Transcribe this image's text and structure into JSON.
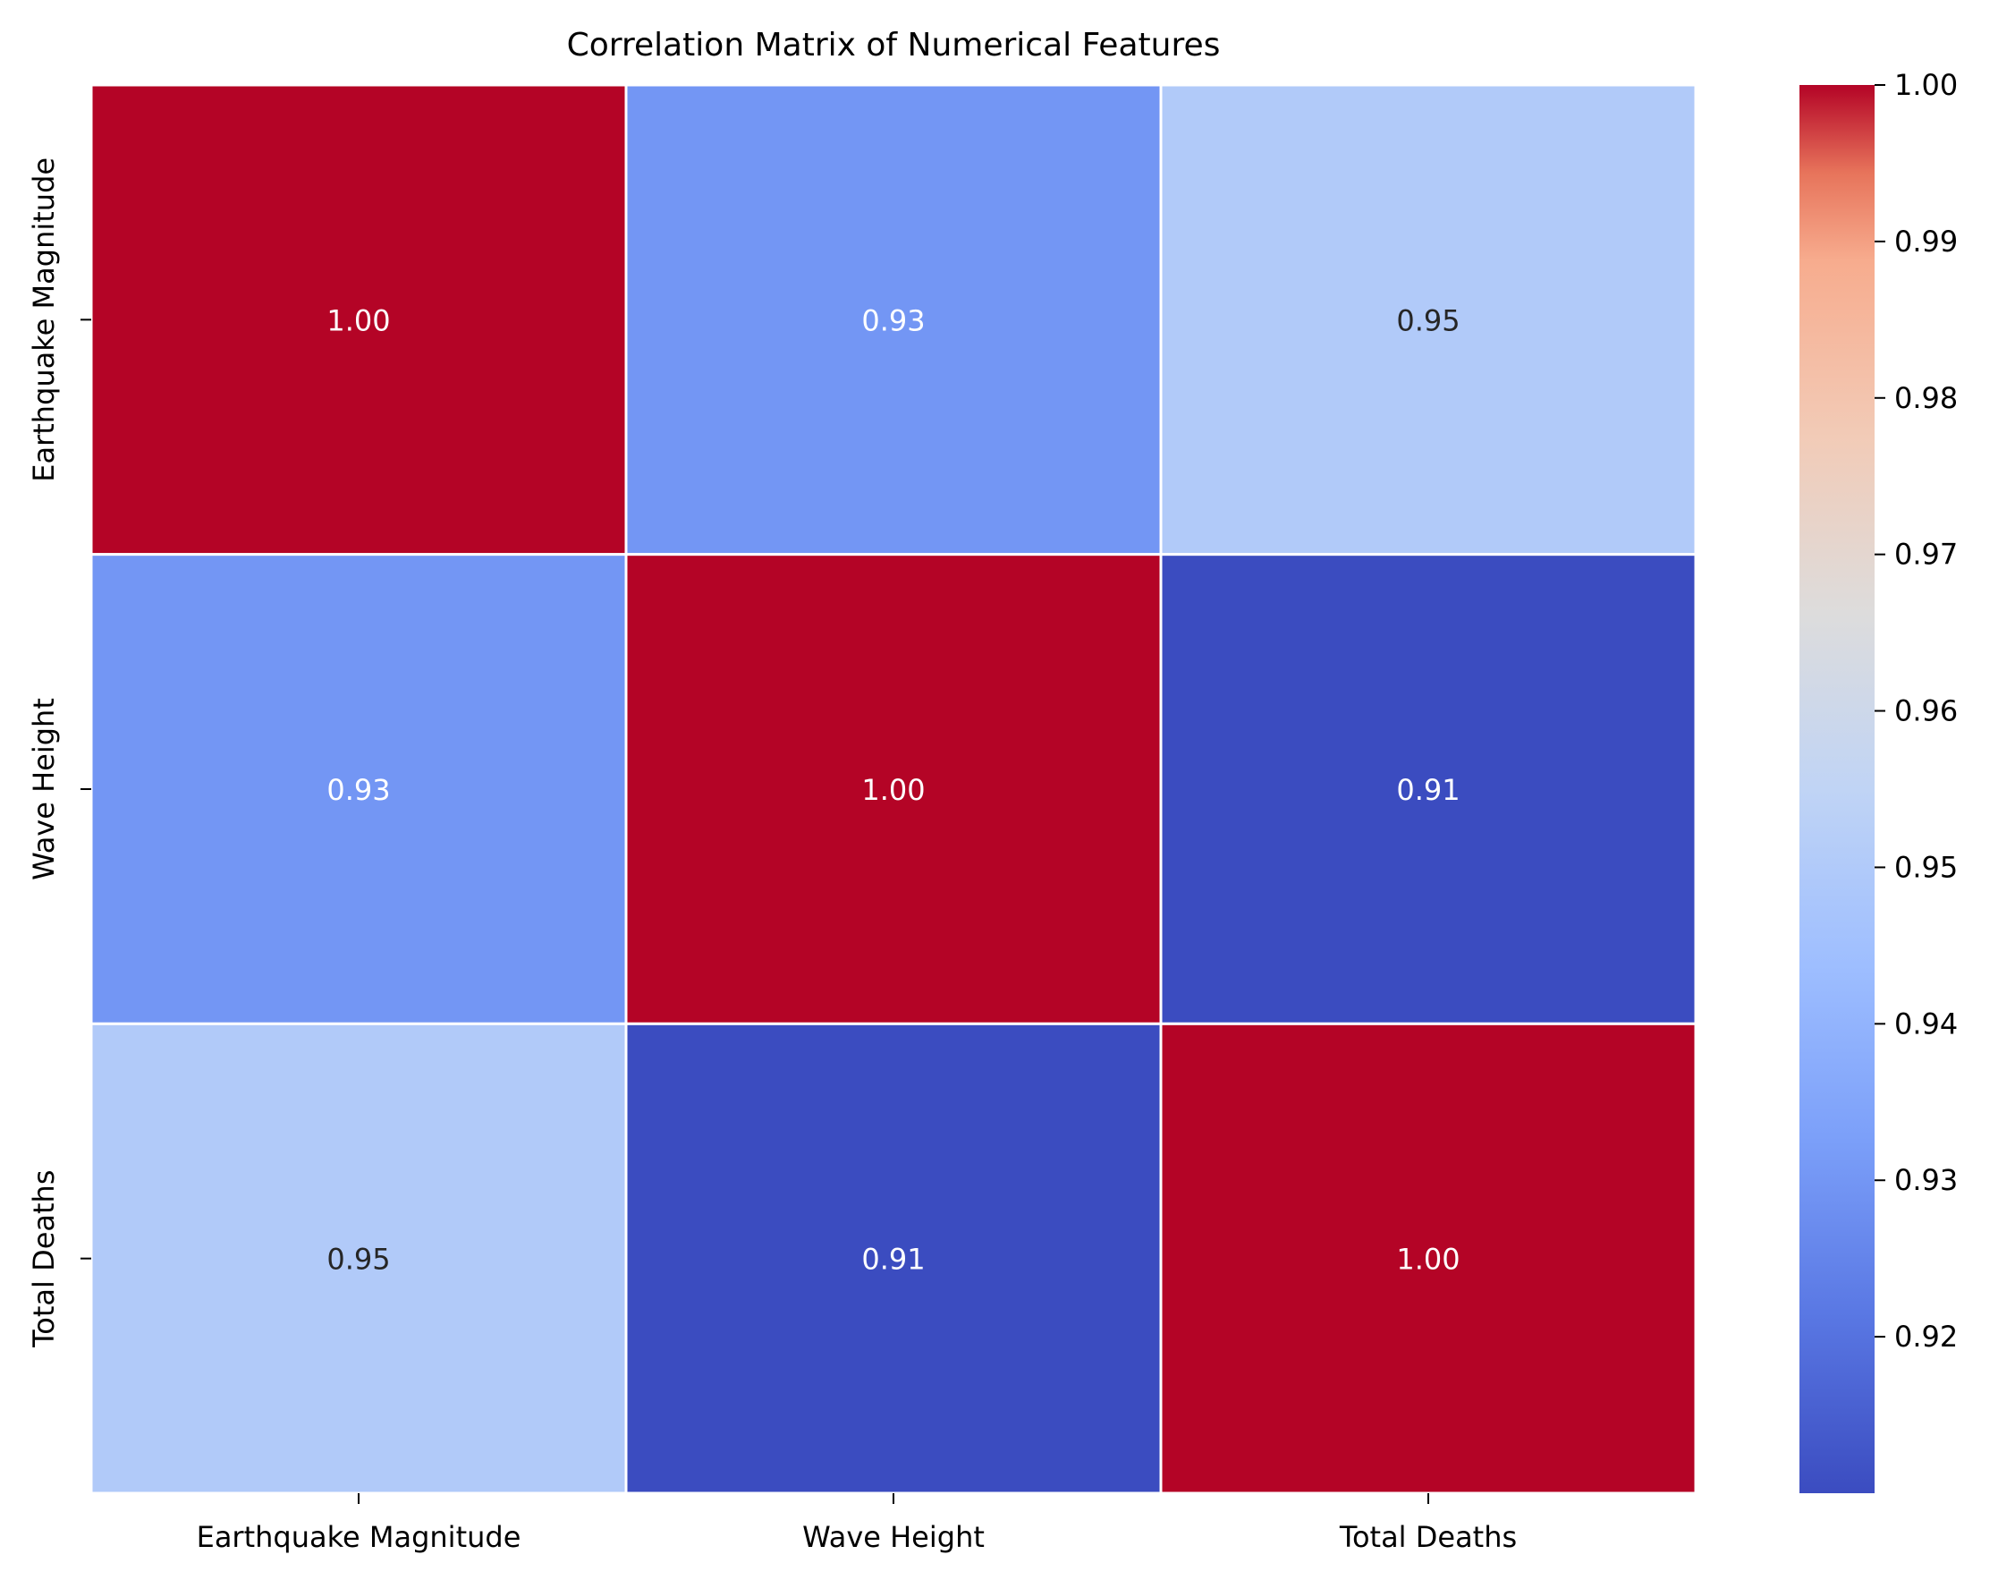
{
  "chart_data": {
    "type": "heatmap",
    "title": "Correlation Matrix of Numerical Features",
    "xlabel": "",
    "ylabel": "",
    "x_categories": [
      "Earthquake Magnitude",
      "Wave Height",
      "Total Deaths"
    ],
    "y_categories": [
      "Earthquake Magnitude",
      "Wave Height",
      "Total Deaths"
    ],
    "values": [
      [
        1.0,
        0.93,
        0.95
      ],
      [
        0.93,
        1.0,
        0.91
      ],
      [
        0.95,
        0.91,
        1.0
      ]
    ],
    "cell_labels": [
      [
        "1.00",
        "0.93",
        "0.95"
      ],
      [
        "0.93",
        "1.00",
        "0.91"
      ],
      [
        "0.95",
        "0.91",
        "1.00"
      ]
    ],
    "colormap": "coolwarm",
    "color_range": [
      0.91,
      1.0
    ],
    "colorbar": {
      "ticks": [
        0.92,
        0.93,
        0.94,
        0.95,
        0.96,
        0.97,
        0.98,
        0.99,
        1.0
      ],
      "tick_labels": [
        "0.92",
        "0.93",
        "0.94",
        "0.95",
        "0.96",
        "0.97",
        "0.98",
        "0.99",
        "1.00"
      ]
    },
    "grid": false,
    "cell_border_color": "#ffffff"
  }
}
